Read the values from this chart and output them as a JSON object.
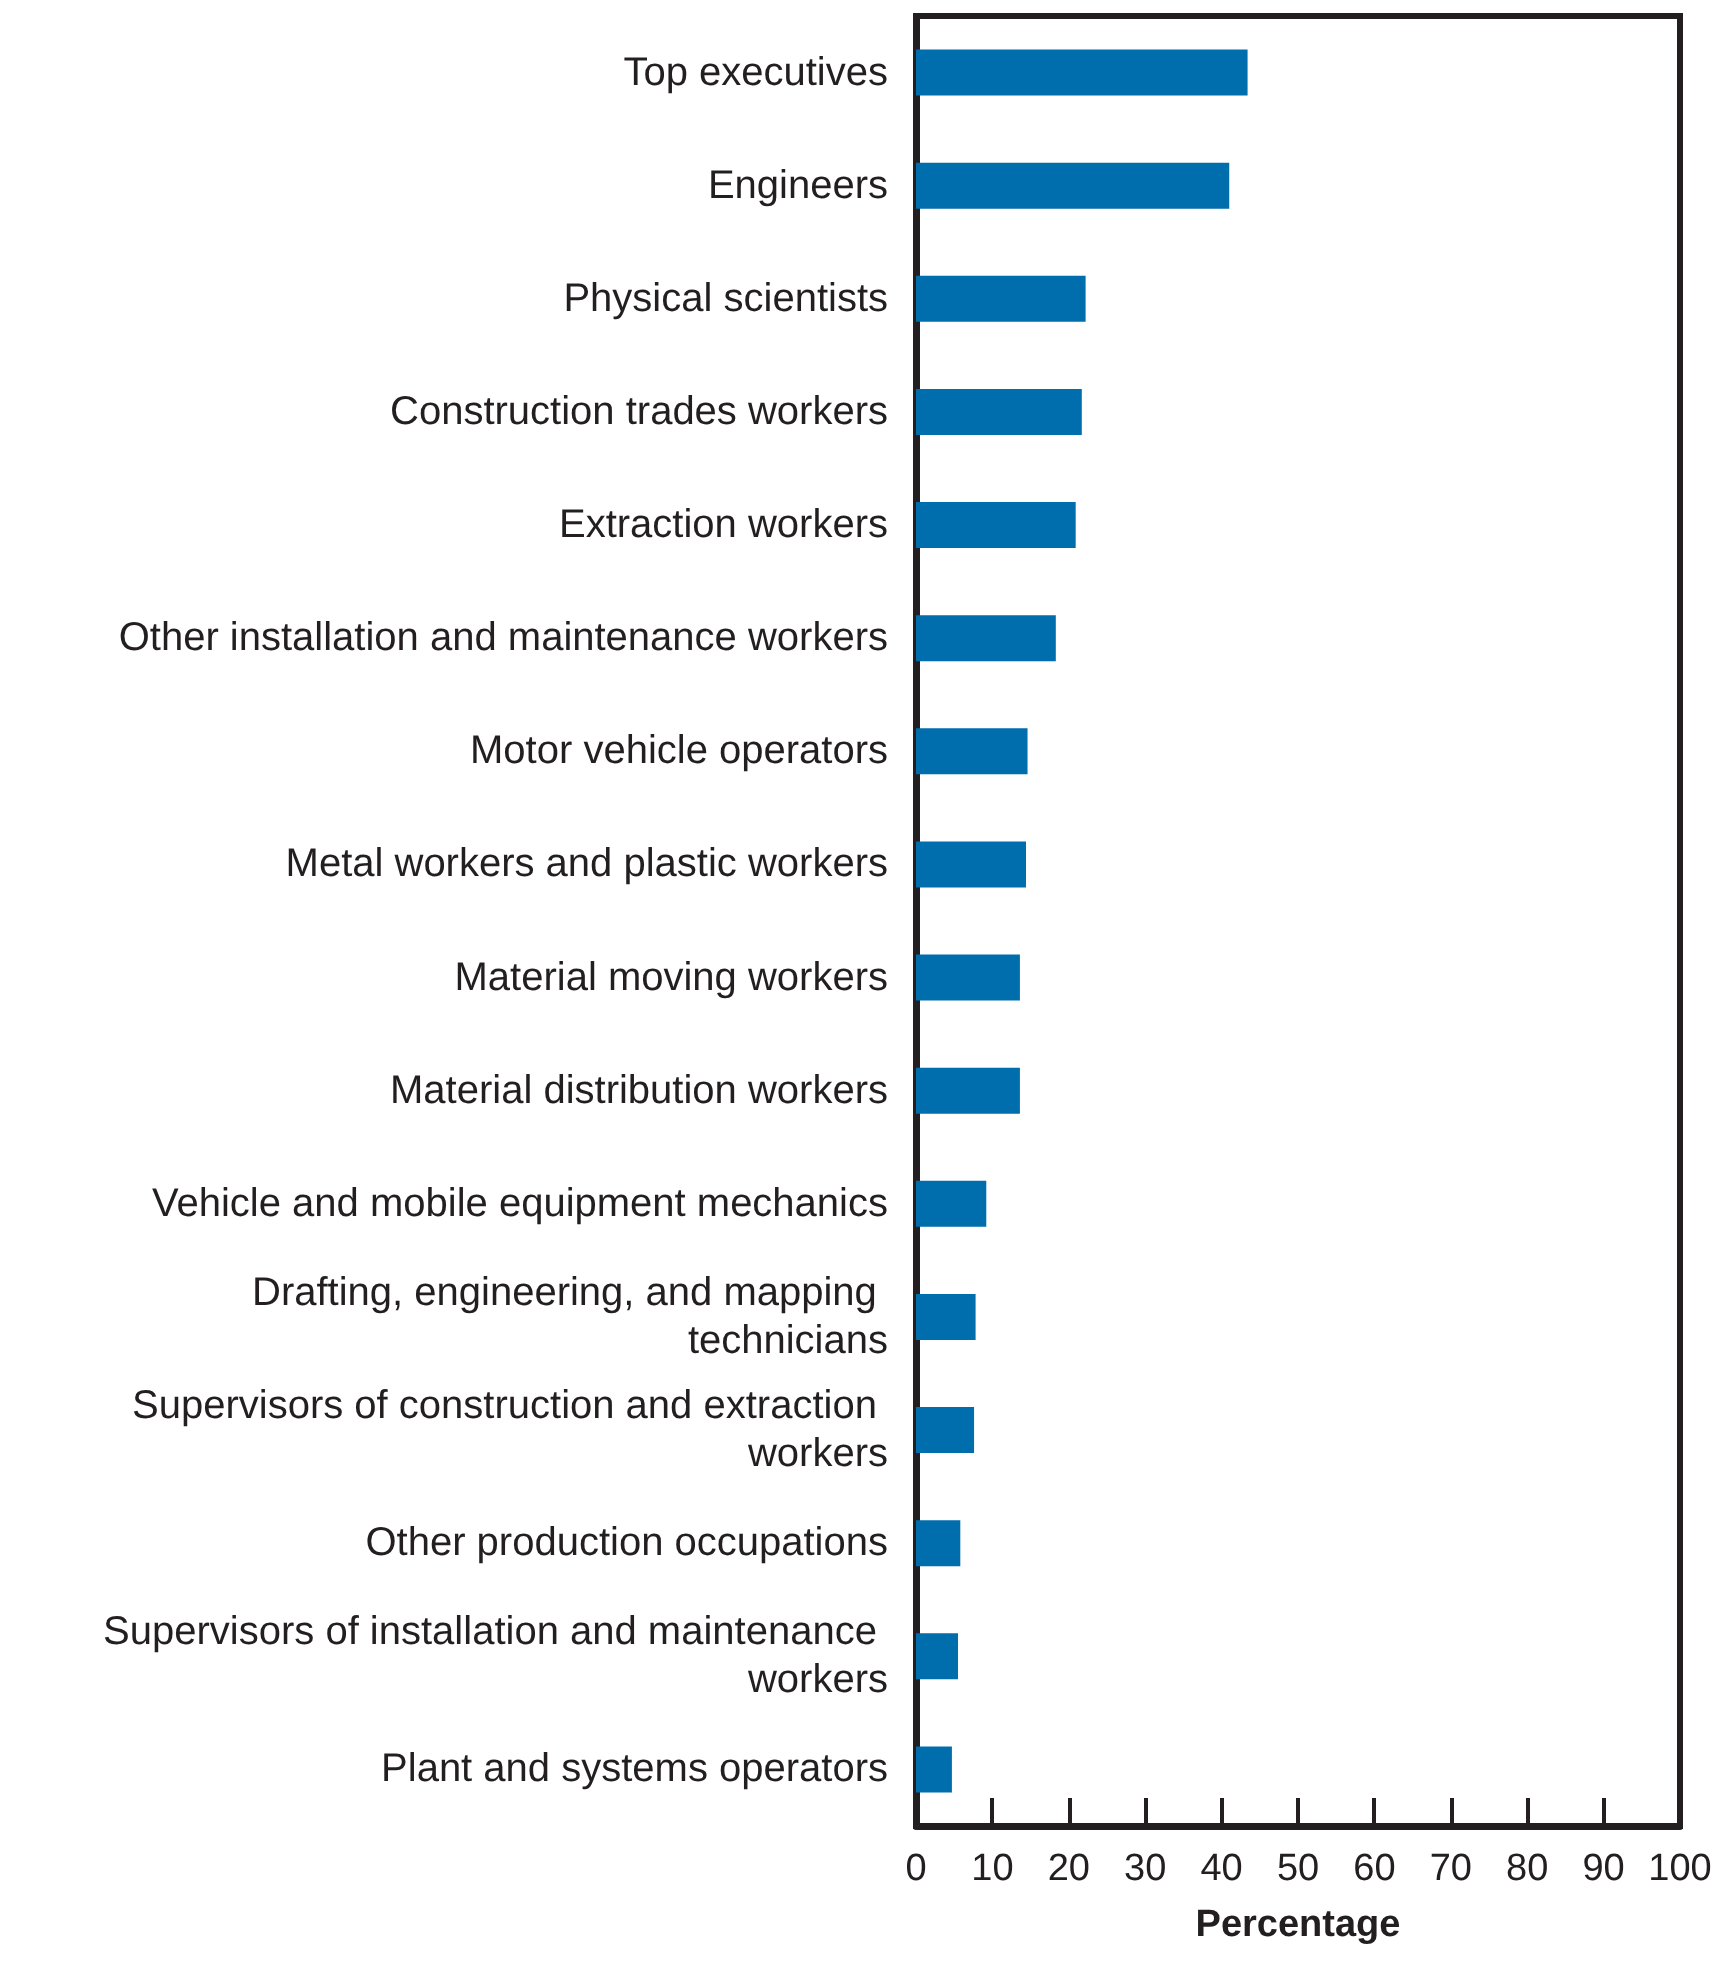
{
  "chart_data": {
    "type": "bar",
    "orientation": "horizontal",
    "xlabel": "Percentage",
    "categories": [
      "Top executives",
      "Engineers",
      "Physical scientists",
      "Construction trades workers",
      "Extraction workers",
      "Other installation and maintenance workers",
      "Motor vehicle operators",
      "Metal workers and plastic workers",
      "Material moving workers",
      "Material distribution workers",
      "Vehicle and mobile equipment mechanics",
      "Drafting, engineering, and mapping technicians",
      "Supervisors of construction and extraction workers",
      "Other production occupations",
      "Supervisors of installation and maintenance workers",
      "Plant and systems operators"
    ],
    "values": [
      43.4,
      41.0,
      22.2,
      21.7,
      20.9,
      18.3,
      14.6,
      14.4,
      13.6,
      13.6,
      9.2,
      7.8,
      7.6,
      5.8,
      5.5,
      4.7
    ],
    "color": "#006dac",
    "xlim": [
      0,
      100
    ],
    "xticks": [
      0,
      10,
      20,
      30,
      40,
      50,
      60,
      70,
      80,
      90,
      100
    ]
  }
}
